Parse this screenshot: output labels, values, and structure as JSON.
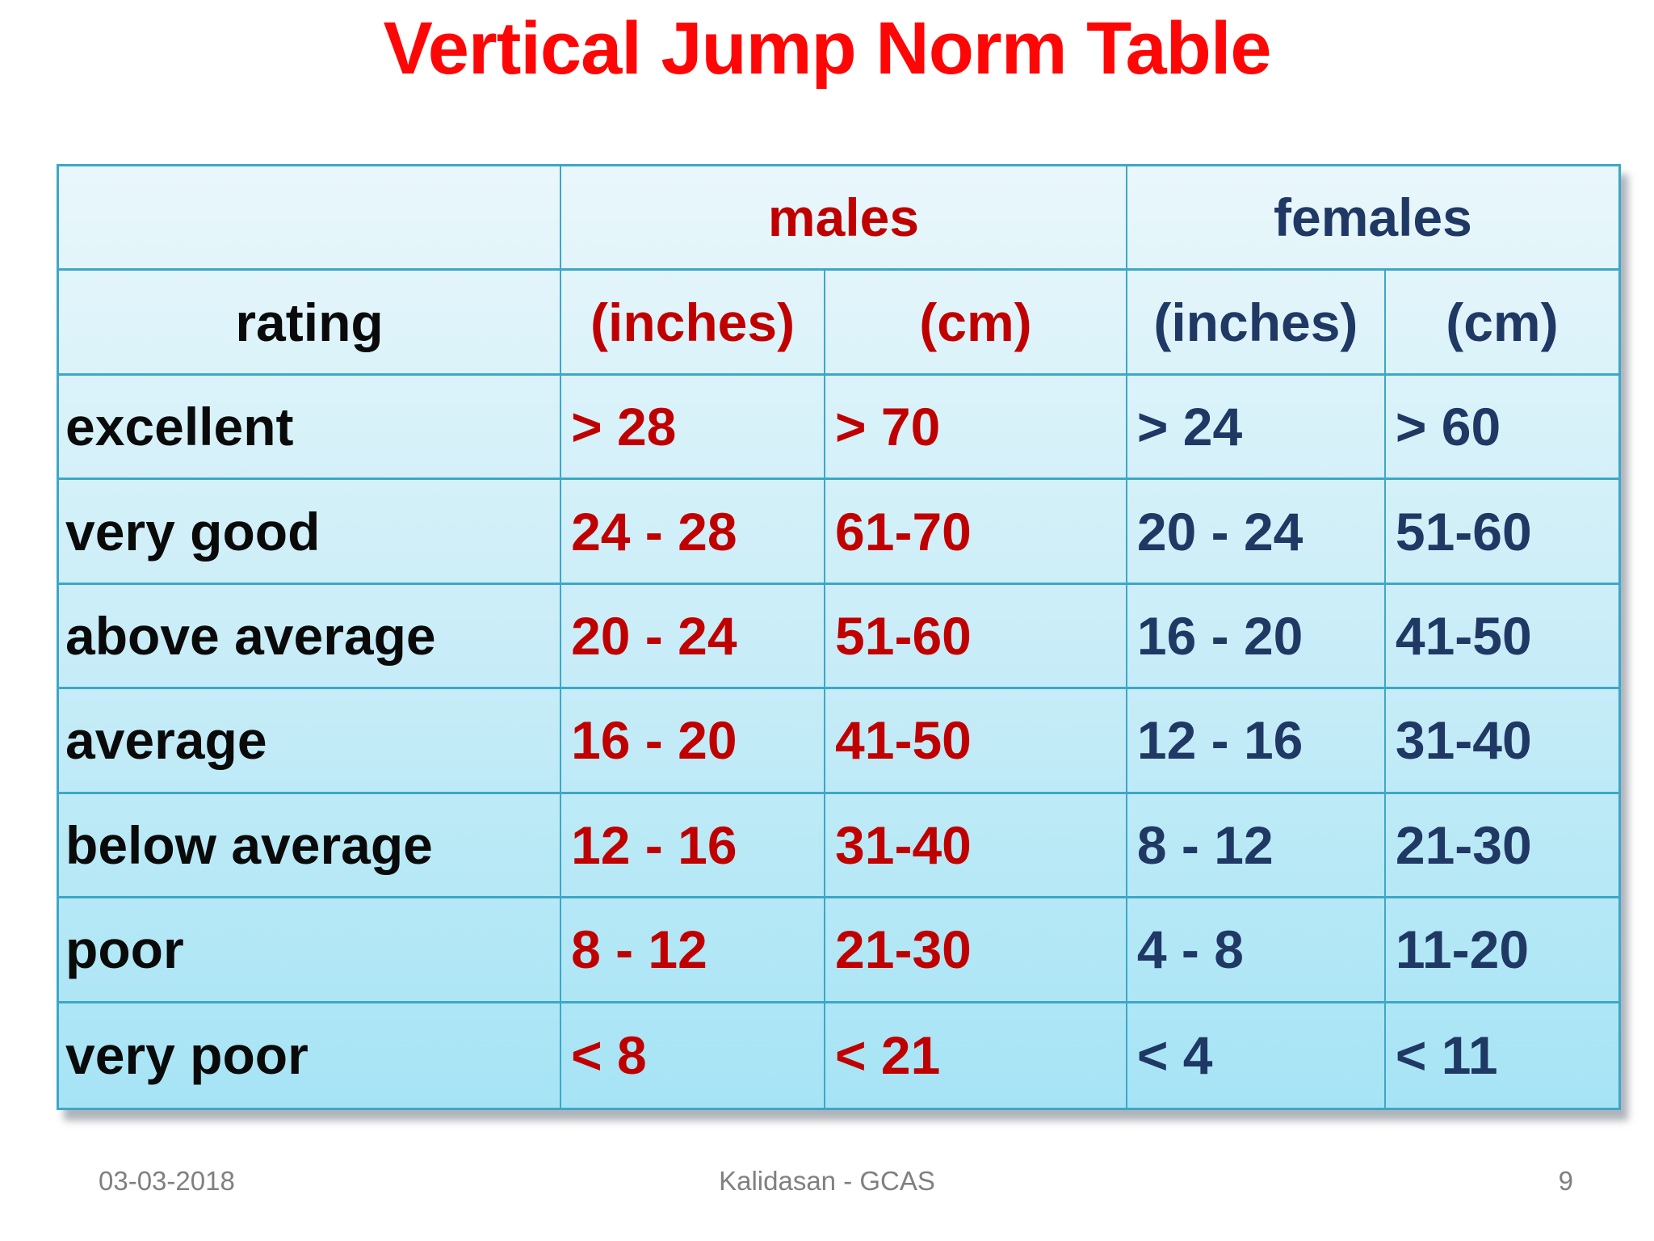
{
  "title": "Vertical Jump Norm Table",
  "table": {
    "group_headers": [
      {
        "label": "males"
      },
      {
        "label": "females"
      }
    ],
    "column_headers": {
      "rating": "rating",
      "males_inches": "(inches)",
      "males_cm": "(cm)",
      "females_inches": "(inches)",
      "females_cm": "(cm)"
    },
    "rows": [
      {
        "rating": "excellent",
        "males_inches": "> 28",
        "males_cm": "> 70",
        "females_inches": "> 24",
        "females_cm": "> 60"
      },
      {
        "rating": "very good",
        "males_inches": "24 - 28",
        "males_cm": "61-70",
        "females_inches": "20 - 24",
        "females_cm": "51-60"
      },
      {
        "rating": "above average",
        "males_inches": "20 - 24",
        "males_cm": "51-60",
        "females_inches": "16 - 20",
        "females_cm": "41-50"
      },
      {
        "rating": "average",
        "males_inches": "16 - 20",
        "males_cm": "41-50",
        "females_inches": "12 - 16",
        "females_cm": "31-40"
      },
      {
        "rating": "below average",
        "males_inches": "12 - 16",
        "males_cm": "31-40",
        "females_inches": "8 - 12",
        "females_cm": "21-30"
      },
      {
        "rating": "poor",
        "males_inches": "8 - 12",
        "males_cm": "21-30",
        "females_inches": "4 - 8",
        "females_cm": "11-20"
      },
      {
        "rating": "very poor",
        "males_inches": "< 8",
        "males_cm": "< 21",
        "females_inches": "< 4",
        "females_cm": "< 11"
      }
    ]
  },
  "footer": {
    "date": "03-03-2018",
    "author": "Kalidasan - GCAS",
    "page_number": "9"
  },
  "colors": {
    "title_red": "#fe0606",
    "male_red": "#c00000",
    "female_navy": "#1f3864",
    "table_border_teal": "#3da7c7",
    "gradient_top": "#e9f7fb",
    "gradient_bottom": "#a6e4f5",
    "footer_gray": "#808080"
  }
}
